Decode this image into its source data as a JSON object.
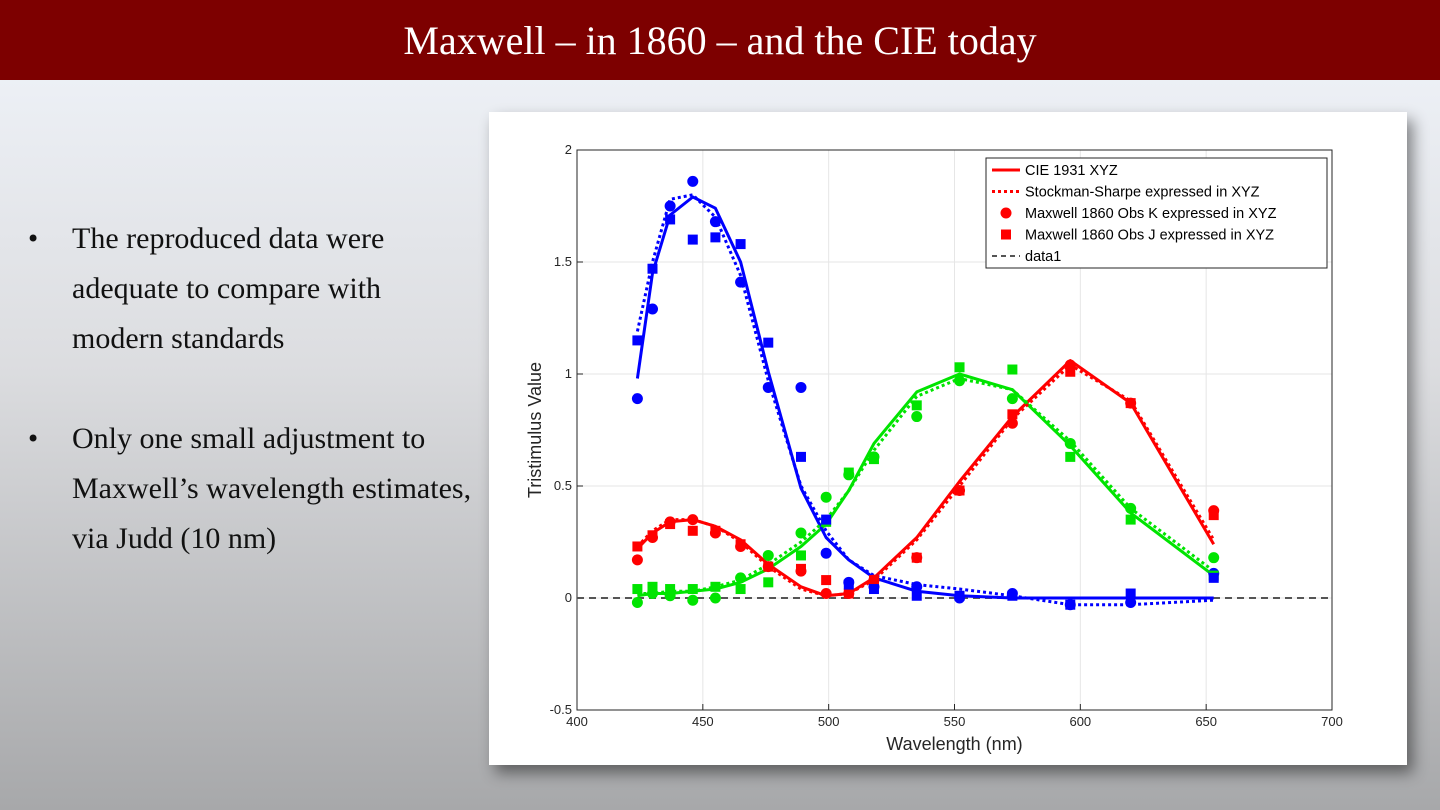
{
  "slide": {
    "title": "Maxwell – in 1860 – and the CIE today",
    "bullets": [
      "The reproduced data were adequate to compare with modern standards",
      "Only one small adjustment to Maxwell’s wavelength estimates, via Judd (10 nm)"
    ],
    "bullet_glyph": "•"
  },
  "chart_data": {
    "type": "line",
    "xlabel": "Wavelength (nm)",
    "ylabel": "Tristimulus Value",
    "xlim": [
      400,
      700
    ],
    "ylim": [
      -0.5,
      2
    ],
    "xticks": [
      400,
      450,
      500,
      550,
      600,
      650,
      700
    ],
    "yticks": [
      -0.5,
      0,
      0.5,
      1,
      1.5,
      2
    ],
    "grid": true,
    "legend_position": "top-right",
    "colors": {
      "x": "#ff0000",
      "y": "#00e400",
      "z": "#0000ff",
      "ref": "#555555"
    },
    "legend": [
      {
        "label": "CIE 1931 XYZ",
        "style": "solid"
      },
      {
        "label": "Stockman-Sharpe expressed in XYZ",
        "style": "dotted"
      },
      {
        "label": "Maxwell 1860 Obs K expressed in XYZ",
        "style": "circle"
      },
      {
        "label": "Maxwell 1860 Obs J expressed in XYZ",
        "style": "square"
      },
      {
        "label": "data1",
        "style": "dashed"
      }
    ],
    "reference_line": {
      "y": 0
    },
    "series": [
      {
        "group": "cie",
        "channel": "x",
        "x": [
          424,
          430,
          437,
          446,
          455,
          465,
          476,
          489,
          499,
          508,
          518,
          535,
          552,
          573,
          596,
          620,
          653
        ],
        "y": [
          0.22,
          0.29,
          0.34,
          0.35,
          0.32,
          0.26,
          0.15,
          0.05,
          0.01,
          0.02,
          0.09,
          0.27,
          0.52,
          0.81,
          1.06,
          0.87,
          0.24
        ]
      },
      {
        "group": "cie",
        "channel": "y",
        "x": [
          424,
          430,
          437,
          446,
          455,
          465,
          476,
          489,
          499,
          508,
          518,
          535,
          552,
          573,
          596,
          620,
          653
        ],
        "y": [
          0.01,
          0.02,
          0.02,
          0.03,
          0.04,
          0.07,
          0.13,
          0.23,
          0.33,
          0.48,
          0.69,
          0.92,
          1.0,
          0.93,
          0.68,
          0.38,
          0.1
        ]
      },
      {
        "group": "cie",
        "channel": "z",
        "x": [
          424,
          430,
          437,
          446,
          455,
          465,
          476,
          489,
          499,
          508,
          518,
          535,
          552,
          573,
          596,
          620,
          653
        ],
        "y": [
          0.98,
          1.45,
          1.71,
          1.79,
          1.74,
          1.5,
          1.01,
          0.49,
          0.27,
          0.17,
          0.09,
          0.03,
          0.01,
          0.0,
          0.0,
          0.0,
          0.0
        ]
      },
      {
        "group": "ss",
        "channel": "x",
        "x": [
          424,
          430,
          437,
          446,
          455,
          465,
          476,
          489,
          499,
          508,
          518,
          535,
          552,
          573,
          596,
          620,
          653
        ],
        "y": [
          0.23,
          0.3,
          0.35,
          0.35,
          0.32,
          0.25,
          0.14,
          0.04,
          0.01,
          0.02,
          0.08,
          0.26,
          0.5,
          0.8,
          1.04,
          0.88,
          0.26
        ]
      },
      {
        "group": "ss",
        "channel": "y",
        "x": [
          424,
          430,
          437,
          446,
          455,
          465,
          476,
          489,
          499,
          508,
          518,
          535,
          552,
          573,
          596,
          620,
          653
        ],
        "y": [
          0.02,
          0.02,
          0.03,
          0.03,
          0.05,
          0.08,
          0.15,
          0.25,
          0.35,
          0.48,
          0.66,
          0.9,
          0.98,
          0.93,
          0.7,
          0.4,
          0.12
        ]
      },
      {
        "group": "ss",
        "channel": "z",
        "x": [
          424,
          430,
          437,
          446,
          455,
          465,
          476,
          489,
          499,
          508,
          518,
          535,
          552,
          573,
          596,
          620,
          653
        ],
        "y": [
          1.19,
          1.5,
          1.78,
          1.8,
          1.7,
          1.44,
          0.97,
          0.5,
          0.3,
          0.17,
          0.1,
          0.06,
          0.04,
          0.01,
          -0.03,
          -0.03,
          -0.01
        ]
      },
      {
        "group": "obsK",
        "channel": "x",
        "x": [
          424,
          430,
          437,
          446,
          455,
          465,
          476,
          489,
          499,
          508,
          518,
          535,
          552,
          573,
          596,
          620,
          653
        ],
        "y": [
          0.17,
          0.27,
          0.34,
          0.35,
          0.29,
          0.23,
          0.14,
          0.12,
          0.02,
          0.02,
          0.08,
          0.18,
          0.48,
          0.78,
          1.04,
          0.87,
          0.39
        ]
      },
      {
        "group": "obsK",
        "channel": "y",
        "x": [
          424,
          430,
          437,
          446,
          455,
          465,
          476,
          489,
          499,
          508,
          518,
          535,
          552,
          573,
          596,
          620,
          653
        ],
        "y": [
          -0.02,
          0.02,
          0.01,
          -0.01,
          0.0,
          0.09,
          0.19,
          0.29,
          0.45,
          0.55,
          0.63,
          0.81,
          0.97,
          0.89,
          0.69,
          0.4,
          0.18
        ]
      },
      {
        "group": "obsK",
        "channel": "z",
        "x": [
          424,
          430,
          437,
          446,
          455,
          465,
          476,
          489,
          499,
          508,
          518,
          535,
          552,
          573,
          596,
          620,
          653
        ],
        "y": [
          0.89,
          1.29,
          1.75,
          1.86,
          1.68,
          1.41,
          0.94,
          0.94,
          0.2,
          0.07,
          0.05,
          0.05,
          0.0,
          0.02,
          -0.03,
          -0.02,
          0.11
        ]
      },
      {
        "group": "obsJ",
        "channel": "x",
        "x": [
          424,
          430,
          437,
          446,
          455,
          465,
          476,
          489,
          499,
          508,
          518,
          535,
          552,
          573,
          596,
          620,
          653
        ],
        "y": [
          0.23,
          0.28,
          0.33,
          0.3,
          0.3,
          0.24,
          0.14,
          0.13,
          0.08,
          0.02,
          0.08,
          0.18,
          0.48,
          0.82,
          1.01,
          0.87,
          0.37
        ]
      },
      {
        "group": "obsJ",
        "channel": "y",
        "x": [
          424,
          430,
          437,
          446,
          455,
          465,
          476,
          489,
          499,
          508,
          518,
          535,
          552,
          573,
          596,
          620,
          653
        ],
        "y": [
          0.04,
          0.05,
          0.04,
          0.04,
          0.05,
          0.04,
          0.07,
          0.19,
          0.34,
          0.56,
          0.62,
          0.86,
          1.03,
          1.02,
          0.63,
          0.35,
          0.1
        ]
      },
      {
        "group": "obsJ",
        "channel": "z",
        "x": [
          424,
          430,
          437,
          446,
          455,
          465,
          476,
          489,
          499,
          508,
          518,
          535,
          552,
          573,
          596,
          620,
          653
        ],
        "y": [
          1.15,
          1.47,
          1.69,
          1.6,
          1.61,
          1.58,
          1.14,
          0.63,
          0.35,
          0.06,
          0.04,
          0.01,
          0.01,
          0.01,
          -0.03,
          0.02,
          0.09
        ]
      }
    ]
  }
}
